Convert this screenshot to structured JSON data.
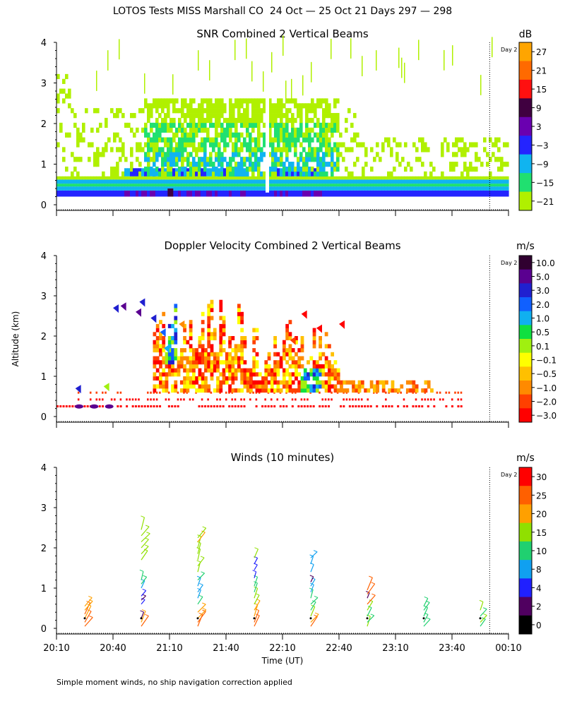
{
  "chart_data": {
    "type": "heatmap",
    "title": "LOTOS Tests MISS Marshall CO  24 Oct — 25 Oct 21 Days 297 — 298",
    "footnote": "Simple moment winds, no ship navigation correction applied",
    "xlabel": "Time (UT)",
    "ylabel": "Altitude (km)",
    "x_ticks": [
      "20:10",
      "20:40",
      "21:10",
      "21:40",
      "22:10",
      "22:40",
      "23:10",
      "23:40",
      "00:10"
    ],
    "x_minutes": [
      0,
      30,
      60,
      90,
      120,
      150,
      180,
      210,
      240
    ],
    "y_ticks": [
      "0",
      "1",
      "2",
      "3",
      "4"
    ],
    "ylim": [
      0,
      4
    ],
    "day_marker": {
      "label": "Day 2",
      "minute": 230
    },
    "panels": [
      {
        "title": "SNR Combined 2 Vertical Beams",
        "unit": "dB",
        "colorbar": {
          "labels": [
            "27",
            "21",
            "15",
            "9",
            "3",
            "−3",
            "−9",
            "−15",
            "−21"
          ],
          "colors": [
            "#ffa500",
            "#ff6a00",
            "#ff1010",
            "#400040",
            "#6a00b0",
            "#2424ff",
            "#10b4f0",
            "#20e070",
            "#b0f000"
          ]
        }
      },
      {
        "title": "Doppler Velocity Combined 2 Vertical Beams",
        "unit": "m/s",
        "colorbar": {
          "labels": [
            "10.0",
            "5.0",
            "3.0",
            "2.0",
            "1.0",
            "0.5",
            "0.1",
            "−0.1",
            "−0.5",
            "−1.0",
            "−2.0",
            "−3.0"
          ],
          "colors": [
            "#300030",
            "#5a0090",
            "#2020d0",
            "#1060ff",
            "#10b0f0",
            "#10e040",
            "#a0f010",
            "#ffff00",
            "#ffc000",
            "#ff8a00",
            "#ff4000",
            "#ff0000"
          ]
        }
      },
      {
        "title": "Winds (10 minutes)",
        "unit": "m/s",
        "colorbar": {
          "labels": [
            "30",
            "25",
            "20",
            "15",
            "10",
            "8",
            "4",
            "2",
            "0"
          ],
          "colors": [
            "#ff0000",
            "#ff6000",
            "#ffa000",
            "#90e000",
            "#20d070",
            "#10a0f0",
            "#2020ff",
            "#500060",
            "#000000"
          ]
        }
      }
    ],
    "wind_profiles": [
      {
        "minute": 15,
        "barbs": [
          [
            0.05,
            20,
            "#ff6000"
          ],
          [
            0.15,
            22,
            "#ff6000"
          ],
          [
            0.25,
            25,
            "#ffa000"
          ],
          [
            0.35,
            22,
            "#ff6000"
          ],
          [
            0.45,
            20,
            "#ffa000"
          ],
          [
            0.55,
            18,
            "#ffa000"
          ]
        ]
      },
      {
        "minute": 45,
        "barbs": [
          [
            0.05,
            22,
            "#ff6000"
          ],
          [
            0.15,
            20,
            "#ffa000"
          ],
          [
            0.25,
            6,
            "#500060"
          ],
          [
            0.6,
            3,
            "#2020ff"
          ],
          [
            0.7,
            4,
            "#500060"
          ],
          [
            0.8,
            8,
            "#2020ff"
          ],
          [
            1.0,
            10,
            "#10a0f0"
          ],
          [
            1.1,
            12,
            "#20d070"
          ],
          [
            1.2,
            12,
            "#20d070"
          ],
          [
            1.7,
            18,
            "#90e000"
          ],
          [
            1.85,
            16,
            "#90e000"
          ],
          [
            2.0,
            18,
            "#90e000"
          ],
          [
            2.15,
            20,
            "#90e000"
          ],
          [
            2.3,
            20,
            "#90e000"
          ],
          [
            2.45,
            22,
            "#90e000"
          ]
        ]
      },
      {
        "minute": 75,
        "barbs": [
          [
            0.05,
            22,
            "#ff6000"
          ],
          [
            0.15,
            24,
            "#ff6000"
          ],
          [
            0.25,
            20,
            "#ffa000"
          ],
          [
            0.4,
            18,
            "#ffa000"
          ],
          [
            0.6,
            12,
            "#20d070"
          ],
          [
            0.75,
            12,
            "#10a0f0"
          ],
          [
            0.9,
            12,
            "#10a0f0"
          ],
          [
            1.05,
            12,
            "#10a0f0"
          ],
          [
            1.2,
            14,
            "#20d070"
          ],
          [
            1.4,
            16,
            "#90e000"
          ],
          [
            1.55,
            16,
            "#90e000"
          ],
          [
            1.7,
            18,
            "#90e000"
          ],
          [
            1.85,
            18,
            "#90e000"
          ],
          [
            2.0,
            20,
            "#90e000"
          ],
          [
            2.15,
            20,
            "#ffa000"
          ],
          [
            2.25,
            22,
            "#90e000"
          ]
        ]
      },
      {
        "minute": 105,
        "barbs": [
          [
            0.05,
            20,
            "#ff6000"
          ],
          [
            0.15,
            22,
            "#ff6000"
          ],
          [
            0.3,
            20,
            "#ffa000"
          ],
          [
            0.45,
            18,
            "#ffa000"
          ],
          [
            0.6,
            16,
            "#90e000"
          ],
          [
            0.75,
            16,
            "#90e000"
          ],
          [
            0.9,
            14,
            "#20d070"
          ],
          [
            1.05,
            14,
            "#20d070"
          ],
          [
            1.25,
            6,
            "#2020ff"
          ],
          [
            1.45,
            4,
            "#2020ff"
          ],
          [
            1.6,
            6,
            "#2020ff"
          ],
          [
            1.75,
            14,
            "#90e000"
          ]
        ]
      },
      {
        "minute": 135,
        "barbs": [
          [
            0.05,
            20,
            "#ff6000"
          ],
          [
            0.15,
            18,
            "#ffa000"
          ],
          [
            0.3,
            16,
            "#90e000"
          ],
          [
            0.45,
            14,
            "#20d070"
          ],
          [
            0.6,
            14,
            "#20d070"
          ],
          [
            0.75,
            12,
            "#20d070"
          ],
          [
            0.9,
            10,
            "#10a0f0"
          ],
          [
            1.05,
            10,
            "#10a0f0"
          ],
          [
            1.15,
            4,
            "#500060"
          ],
          [
            1.4,
            10,
            "#10a0f0"
          ],
          [
            1.6,
            10,
            "#10a0f0"
          ],
          [
            1.75,
            12,
            "#10a0f0"
          ]
        ]
      },
      {
        "minute": 165,
        "barbs": [
          [
            0.05,
            16,
            "#90e000"
          ],
          [
            0.15,
            14,
            "#20d070"
          ],
          [
            0.3,
            14,
            "#20d070"
          ],
          [
            0.45,
            16,
            "#90e000"
          ],
          [
            0.6,
            20,
            "#ff6000"
          ],
          [
            0.75,
            4,
            "#500060"
          ],
          [
            0.85,
            22,
            "#ff6000"
          ],
          [
            0.95,
            24,
            "#ff6000"
          ]
        ]
      },
      {
        "minute": 195,
        "barbs": [
          [
            0.05,
            14,
            "#20d070"
          ],
          [
            0.15,
            12,
            "#20d070"
          ],
          [
            0.3,
            14,
            "#20d070"
          ],
          [
            0.45,
            14,
            "#20d070"
          ],
          [
            0.55,
            12,
            "#20d070"
          ]
        ]
      },
      {
        "minute": 225,
        "barbs": [
          [
            0.05,
            12,
            "#20d070"
          ],
          [
            0.15,
            14,
            "#90e000"
          ],
          [
            0.3,
            14,
            "#20d070"
          ],
          [
            0.45,
            12,
            "#90e000"
          ]
        ]
      }
    ]
  }
}
